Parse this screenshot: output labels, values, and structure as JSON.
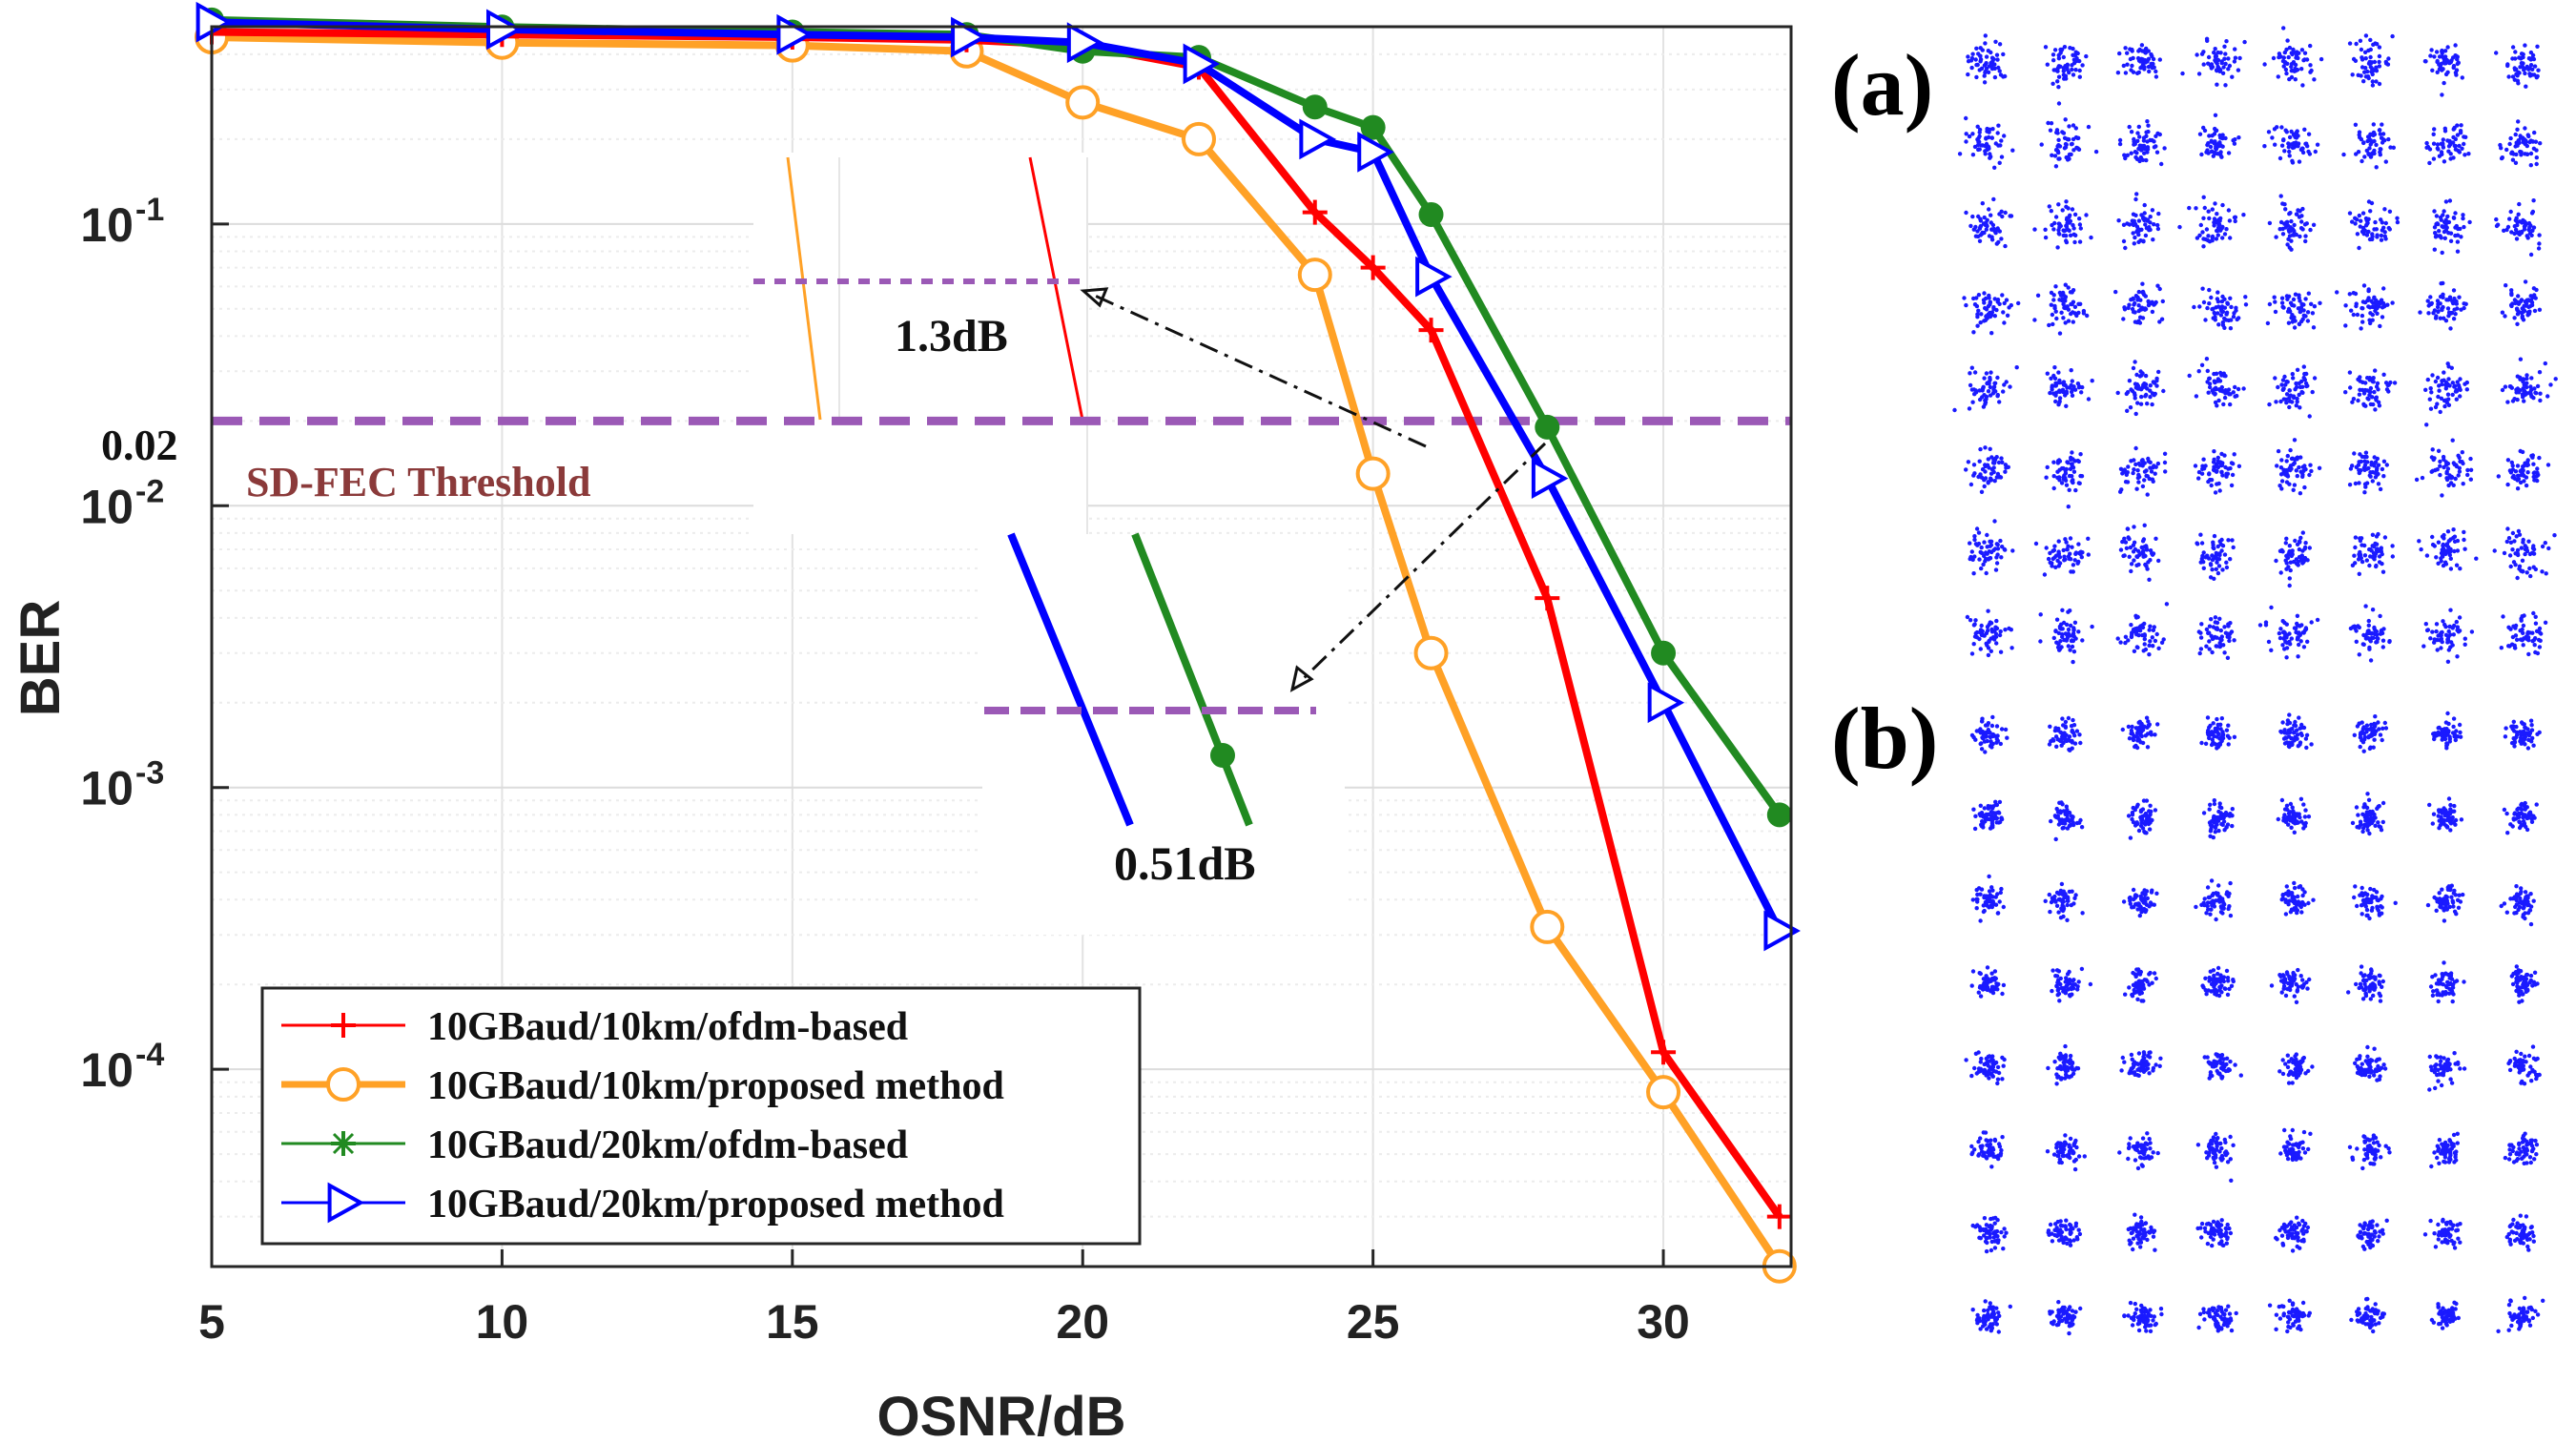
{
  "chart_data": {
    "type": "line",
    "xlabel": "OSNR/dB",
    "ylabel": "BER",
    "xlim": [
      5,
      32.2
    ],
    "ylim_log10": [
      -4.7,
      -0.3
    ],
    "x_ticks": [
      5,
      10,
      15,
      20,
      25,
      30
    ],
    "y_ticks": [
      {
        "value": 0.1,
        "base": "10",
        "exp": "-1"
      },
      {
        "value": 0.01,
        "base": "10",
        "exp": "-2"
      },
      {
        "value": 0.001,
        "base": "10",
        "exp": "-3"
      },
      {
        "value": 0.0001,
        "base": "10",
        "exp": "-4"
      }
    ],
    "grid": true,
    "series": [
      {
        "name": "10GBaud/10km/ofdm-based",
        "color": "#ff0000",
        "marker": "plus",
        "x": [
          5,
          10,
          15,
          18,
          20,
          22,
          24,
          25,
          26,
          28,
          30,
          32
        ],
        "y": [
          0.48,
          0.47,
          0.46,
          0.45,
          0.43,
          0.36,
          0.11,
          0.07,
          0.042,
          0.0047,
          0.000115,
          3e-05
        ]
      },
      {
        "name": "10GBaud/10km/proposed method",
        "color": "#ffa126",
        "marker": "circle",
        "x": [
          5,
          10,
          15,
          18,
          20,
          22,
          24,
          25,
          26,
          28,
          30,
          32
        ],
        "y": [
          0.46,
          0.44,
          0.43,
          0.41,
          0.27,
          0.2,
          0.066,
          0.013,
          0.003,
          0.00032,
          8.3e-05,
          2e-05
        ]
      },
      {
        "name": "10GBaud/20km/ofdm-based",
        "color": "#218a21",
        "marker": "dot",
        "x": [
          5,
          10,
          15,
          18,
          20,
          22,
          24,
          25,
          26,
          28,
          30,
          32
        ],
        "y": [
          0.53,
          0.5,
          0.48,
          0.47,
          0.41,
          0.39,
          0.26,
          0.22,
          0.108,
          0.019,
          0.003,
          0.0008
        ]
      },
      {
        "name": "10GBaud/20km/proposed method",
        "color": "#0000ff",
        "marker": "triangle-right",
        "x": [
          5,
          10,
          15,
          18,
          20,
          22,
          24,
          25,
          26,
          28,
          30,
          32
        ],
        "y": [
          0.52,
          0.49,
          0.47,
          0.46,
          0.44,
          0.37,
          0.2,
          0.18,
          0.065,
          0.0125,
          0.002,
          0.00031
        ]
      }
    ],
    "threshold": {
      "value": 0.02,
      "value_label": "0.02",
      "label": "SD-FEC Threshold",
      "color": "#9b59b6",
      "label_color": "#8b3a3a"
    },
    "annotations": [
      "1.3dB",
      "0.51dB"
    ],
    "panels": [
      {
        "label": "(a)",
        "grid_size": 8,
        "spread": "wide"
      },
      {
        "label": "(b)",
        "grid_size": 8,
        "spread": "tight"
      }
    ],
    "dot_color": "#1a1aff"
  }
}
